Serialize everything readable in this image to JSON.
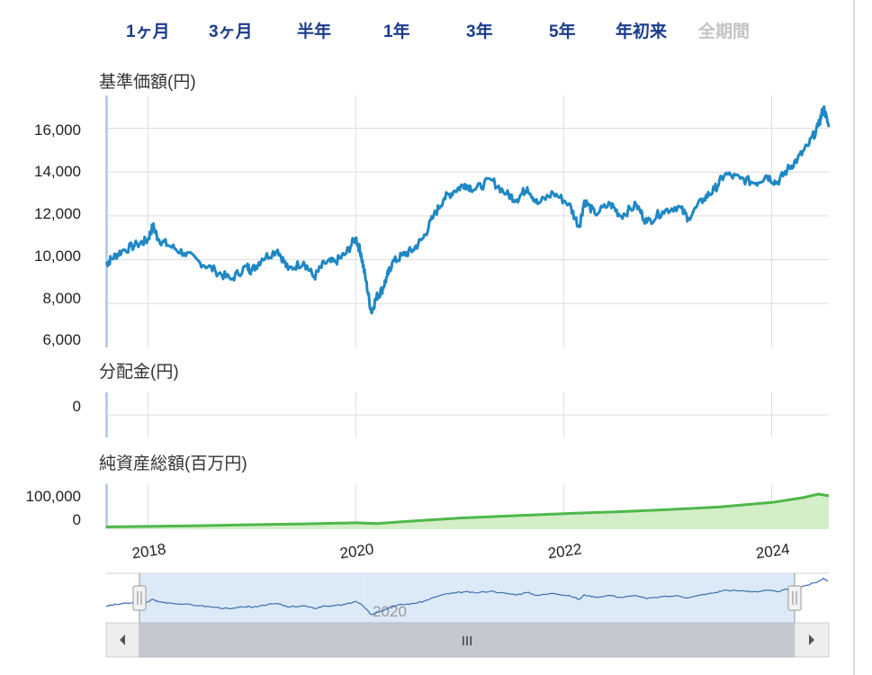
{
  "range_buttons": [
    {
      "label": "1ヶ月",
      "enabled": true
    },
    {
      "label": "3ヶ月",
      "enabled": true
    },
    {
      "label": "半年",
      "enabled": true
    },
    {
      "label": "1年",
      "enabled": true
    },
    {
      "label": "3年",
      "enabled": true
    },
    {
      "label": "5年",
      "enabled": true
    },
    {
      "label": "年初来",
      "enabled": true
    },
    {
      "label": "全期間",
      "enabled": false
    }
  ],
  "colors": {
    "nav_line": "#1f87c4",
    "assets_line": "#4fb84a",
    "assets_fill": "#d4eec8",
    "navigator_line": "#3e6fb0",
    "navigator_selection": "#d6e6f7",
    "grid": "#dddddd",
    "button_text": "#1b3c8c",
    "button_disabled": "#c3c3c3"
  },
  "chart_data": [
    {
      "id": "nav",
      "type": "line",
      "title": "基準価額(円)",
      "yticks": [
        "6,000",
        "8,000",
        "10,000",
        "12,000",
        "14,000",
        "16,000"
      ],
      "ylim": [
        6000,
        17500
      ],
      "xlim": [
        2017.6,
        2024.55
      ],
      "series": [
        {
          "x": [
            2017.6,
            2017.65,
            2017.75,
            2017.9,
            2018.0,
            2018.05,
            2018.1,
            2018.2,
            2018.35,
            2018.5,
            2018.65,
            2018.8,
            2018.95,
            2019.0,
            2019.1,
            2019.25,
            2019.35,
            2019.5,
            2019.6,
            2019.7,
            2019.8,
            2019.9,
            2020.0,
            2020.05,
            2020.1,
            2020.15,
            2020.2,
            2020.25,
            2020.3,
            2020.35,
            2020.45,
            2020.55,
            2020.65,
            2020.75,
            2020.85,
            2020.95,
            2021.05,
            2021.15,
            2021.3,
            2021.45,
            2021.55,
            2021.65,
            2021.75,
            2021.9,
            2022.05,
            2022.15,
            2022.2,
            2022.3,
            2022.45,
            2022.55,
            2022.7,
            2022.8,
            2022.95,
            2023.1,
            2023.2,
            2023.35,
            2023.45,
            2023.55,
            2023.7,
            2023.85,
            2023.95,
            2024.05,
            2024.15,
            2024.25,
            2024.35,
            2024.45,
            2024.5,
            2024.55
          ],
          "y": [
            9800,
            10050,
            10400,
            10700,
            10900,
            11550,
            10950,
            10650,
            10300,
            9900,
            9500,
            9100,
            9700,
            9500,
            10050,
            10450,
            9550,
            9900,
            9200,
            9850,
            9900,
            10250,
            11000,
            10300,
            9000,
            7600,
            8300,
            8600,
            9200,
            9850,
            10200,
            10450,
            11000,
            12000,
            12800,
            13150,
            13450,
            13200,
            13650,
            13000,
            12750,
            13300,
            12550,
            13050,
            12550,
            11500,
            12700,
            12100,
            12550,
            12000,
            12500,
            11700,
            12200,
            12450,
            11900,
            12800,
            13200,
            13900,
            13700,
            13500,
            13850,
            13500,
            14100,
            14600,
            15200,
            16100,
            16950,
            16050
          ]
        }
      ]
    },
    {
      "id": "dividend",
      "type": "line",
      "title": "分配金(円)",
      "yticks": [
        "0"
      ],
      "series": [
        {
          "x": [
            2017.6,
            2024.55
          ],
          "y": [
            0,
            0
          ]
        }
      ]
    },
    {
      "id": "net_assets",
      "type": "area",
      "title": "純資産総額(百万円)",
      "yticks": [
        "0",
        "100,000"
      ],
      "ylim": [
        -8000,
        160000
      ],
      "xlim": [
        2017.6,
        2024.55
      ],
      "series": [
        {
          "x": [
            2017.6,
            2018.0,
            2018.5,
            2019.0,
            2019.5,
            2020.0,
            2020.2,
            2020.5,
            2021.0,
            2021.5,
            2022.0,
            2022.5,
            2023.0,
            2023.5,
            2024.0,
            2024.3,
            2024.45,
            2024.55
          ],
          "y": [
            0,
            2000,
            4500,
            8000,
            11000,
            15000,
            12000,
            20000,
            32000,
            40000,
            48000,
            54000,
            62000,
            72000,
            88000,
            105000,
            118000,
            112000
          ]
        }
      ]
    }
  ],
  "x_axis": {
    "ticks": [
      "2018",
      "2020",
      "2022",
      "2024"
    ],
    "tick_values": [
      2018,
      2020,
      2022,
      2024
    ]
  },
  "navigator": {
    "tick_label": "2020",
    "scrollbar_grip": "III"
  }
}
